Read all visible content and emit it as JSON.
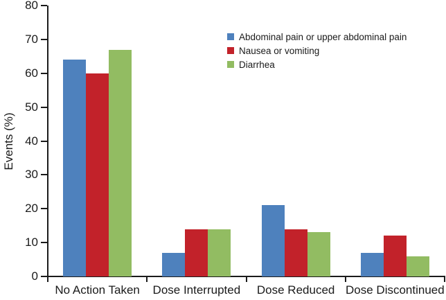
{
  "chart_data": {
    "type": "bar",
    "title": "",
    "xlabel": "",
    "ylabel": "Events (%)",
    "ylim": [
      0,
      80
    ],
    "ytick_step": 10,
    "grid": false,
    "legend_position": "top-right-inside",
    "categories": [
      "No Action Taken",
      "Dose Interrupted",
      "Dose Reduced",
      "Dose Discontinued"
    ],
    "series": [
      {
        "name": "Abdominal pain or upper abdominal pain",
        "color": "#4E81BD",
        "values": [
          64,
          7,
          21,
          7
        ]
      },
      {
        "name": "Nausea or vomiting",
        "color": "#C2222A",
        "values": [
          60,
          14,
          14,
          12
        ]
      },
      {
        "name": "Diarrhea",
        "color": "#92BC62",
        "values": [
          67,
          14,
          13,
          6
        ]
      }
    ]
  },
  "colors": {
    "axis": "#1A1A1A",
    "text": "#1A1A1A",
    "background": "#FFFFFF"
  }
}
